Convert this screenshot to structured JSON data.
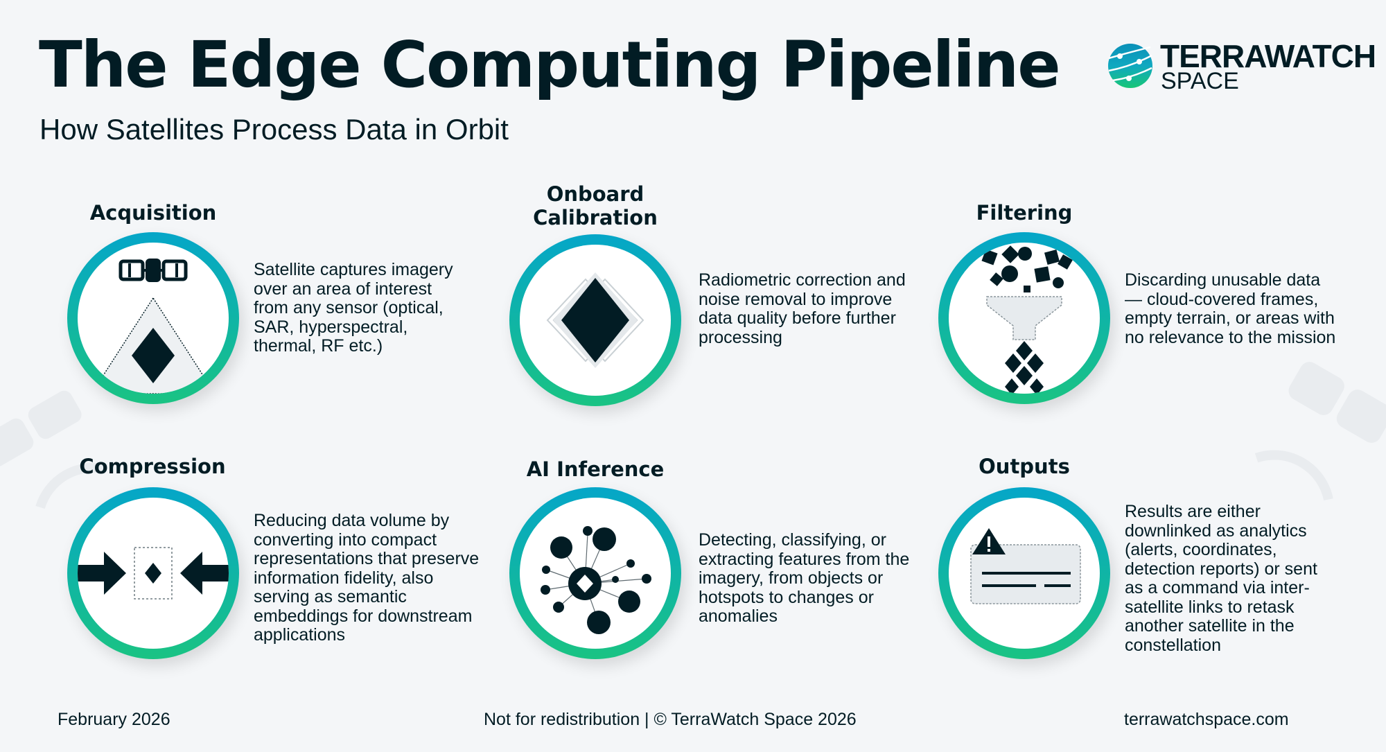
{
  "header": {
    "title": "The Edge Computing Pipeline",
    "subtitle": "How Satellites Process Data in Orbit"
  },
  "logo": {
    "word1": "TERRAWATCH",
    "word2": "SPACE",
    "icon": "globe-orbit-icon"
  },
  "colors": {
    "ring_top": "#05a6c8",
    "ring_bottom": "#1ac383",
    "text": "#021c24",
    "background": "#f4f6f8"
  },
  "steps": [
    {
      "title": "Acquisition",
      "icon": "satellite-capture-icon",
      "description": "Satellite captures imagery over an area of interest from any sensor (optical, SAR, hyperspectral, thermal, RF etc.)"
    },
    {
      "title": "Onboard Calibration",
      "icon": "calibration-diamond-icon",
      "description": "Radiometric correction and noise removal to improve data quality before further processing"
    },
    {
      "title": "Filtering",
      "icon": "funnel-filter-icon",
      "description": "Discarding unusable data — cloud-covered frames, empty terrain, or areas with no relevance to the mission"
    },
    {
      "title": "Compression",
      "icon": "compress-arrows-icon",
      "description": "Reducing data volume by converting into compact representations that preserve information fidelity, also serving as semantic embeddings for downstream applications"
    },
    {
      "title": "AI Inference",
      "icon": "network-nodes-icon",
      "description": "Detecting, classifying, or extracting features from the imagery, from objects or hotspots to changes or anomalies"
    },
    {
      "title": "Outputs",
      "icon": "alert-report-icon",
      "description": "Results are either downlinked as analytics (alerts, coordinates, detection reports) or sent as a command via inter-satellite links to retask another satellite in the constellation"
    }
  ],
  "footer": {
    "date": "February 2026",
    "notice": "Not for redistribution | © TerraWatch Space 2026",
    "website": "terrawatchspace.com"
  }
}
